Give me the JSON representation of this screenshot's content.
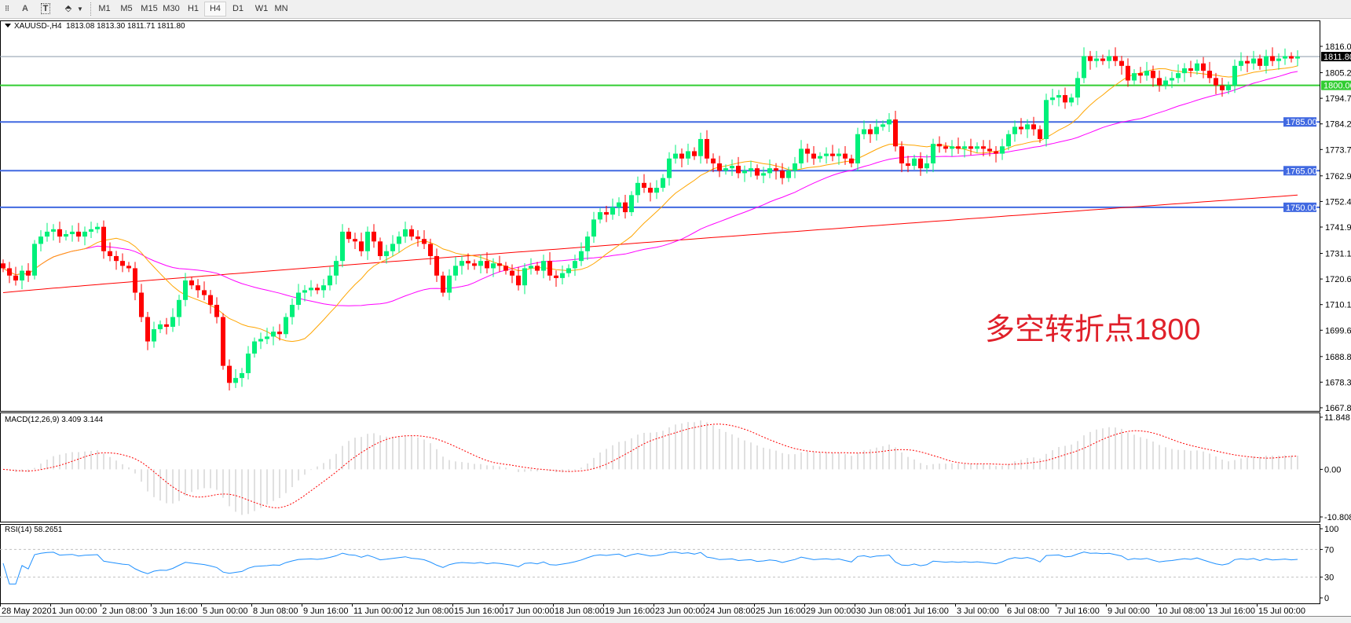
{
  "toolbar": {
    "icons": [
      "grid-icon",
      "text-icon",
      "text-label-icon",
      "arrows-icon"
    ],
    "text_icon_label": "A",
    "timeframes": [
      "M1",
      "M5",
      "M15",
      "M30",
      "H1",
      "H4",
      "D1",
      "W1",
      "MN"
    ],
    "active_timeframe": "H4"
  },
  "header": {
    "symbol": "XAUUSD-,H4",
    "ohlc": "1813.08 1813.30 1811.71 1811.80"
  },
  "annotation": "多空转折点1800",
  "colors": {
    "bull": "#00f07a",
    "bear": "#ff0000",
    "ma_fast": "#ffa500",
    "ma_mid": "#ff00ff",
    "ma_slow": "#ff0000",
    "level_green": "#32cd32",
    "level_blue": "#4169e1",
    "rsi": "#1e90ff",
    "macd_hist": "#c0c0c0",
    "macd_signal": "#ff0000"
  },
  "chart_data": [
    {
      "type": "candlestick",
      "symbol": "XAUUSD-",
      "timeframe": "H4",
      "ylim": [
        1667.8,
        1816.0
      ],
      "price_ticks": [
        "1816.00",
        "1805.20",
        "1794.70",
        "1784.20",
        "1773.70",
        "1762.90",
        "1752.40",
        "1741.90",
        "1731.10",
        "1720.60",
        "1710.10",
        "1699.60",
        "1688.80",
        "1678.30",
        "1667.80"
      ],
      "current_price": "1811.80",
      "levels": [
        {
          "price": 1800.0,
          "label": "1800.00",
          "color": "#32cd32"
        },
        {
          "price": 1785.0,
          "label": "1785.00",
          "color": "#4169e1"
        },
        {
          "price": 1765.0,
          "label": "1765.00",
          "color": "#4169e1"
        },
        {
          "price": 1750.0,
          "label": "1750.00",
          "color": "#4169e1"
        }
      ],
      "closes": [
        1725,
        1722,
        1720,
        1724,
        1722,
        1735,
        1738,
        1740,
        1741,
        1738,
        1739,
        1740,
        1738,
        1740,
        1741,
        1742,
        1732,
        1730,
        1728,
        1726,
        1725,
        1715,
        1705,
        1695,
        1700,
        1702,
        1701,
        1705,
        1712,
        1720,
        1718,
        1716,
        1714,
        1710,
        1705,
        1685,
        1678,
        1680,
        1682,
        1690,
        1695,
        1696,
        1697,
        1699,
        1698,
        1705,
        1710,
        1715,
        1716,
        1717,
        1716,
        1718,
        1722,
        1728,
        1740,
        1737,
        1736,
        1732,
        1740,
        1736,
        1730,
        1732,
        1735,
        1738,
        1741,
        1738,
        1737,
        1735,
        1730,
        1722,
        1715,
        1722,
        1726,
        1728,
        1727,
        1726,
        1728,
        1725,
        1727,
        1726,
        1724,
        1722,
        1718,
        1725,
        1726,
        1724,
        1728,
        1722,
        1721,
        1723,
        1725,
        1728,
        1732,
        1738,
        1745,
        1748,
        1747,
        1750,
        1752,
        1748,
        1755,
        1760,
        1758,
        1756,
        1758,
        1762,
        1770,
        1772,
        1770,
        1773,
        1771,
        1778,
        1770,
        1768,
        1765,
        1766,
        1767,
        1764,
        1765,
        1766,
        1763,
        1764,
        1766,
        1765,
        1762,
        1765,
        1768,
        1774,
        1772,
        1770,
        1771,
        1772,
        1771,
        1772,
        1770,
        1768,
        1780,
        1782,
        1780,
        1783,
        1784,
        1786,
        1775,
        1768,
        1767,
        1770,
        1766,
        1768,
        1776,
        1775,
        1774,
        1775,
        1774,
        1775,
        1774,
        1775,
        1774,
        1773,
        1772,
        1775,
        1780,
        1783,
        1782,
        1784,
        1782,
        1778,
        1794,
        1795,
        1796,
        1793,
        1795,
        1803,
        1812,
        1810,
        1811,
        1810,
        1812,
        1810,
        1808,
        1802,
        1805,
        1804,
        1806,
        1803,
        1800,
        1802,
        1803,
        1805,
        1807,
        1806,
        1809,
        1806,
        1803,
        1800,
        1798,
        1800,
        1808,
        1810,
        1809,
        1811,
        1808,
        1812,
        1810,
        1811,
        1812,
        1811,
        1811.8
      ],
      "ma_slow_range": [
        1715,
        1755
      ]
    },
    {
      "type": "bar",
      "title": "MACD(12,26,9) 3.409 3.144",
      "ylim": [
        -10.808,
        11.848
      ],
      "ticks": [
        "11.848",
        "0.00",
        "-10.808"
      ]
    },
    {
      "type": "line",
      "title": "RSI(14) 58.2651",
      "ylim": [
        0,
        100
      ],
      "ticks": [
        "100",
        "70",
        "30",
        "0"
      ],
      "levels": [
        70,
        30
      ]
    }
  ],
  "time_axis": [
    "28 May 2020",
    "1 Jun 00:00",
    "2 Jun 08:00",
    "3 Jun 16:00",
    "5 Jun 00:00",
    "8 Jun 08:00",
    "9 Jun 16:00",
    "11 Jun 00:00",
    "12 Jun 08:00",
    "15 Jun 16:00",
    "17 Jun 00:00",
    "18 Jun 08:00",
    "19 Jun 16:00",
    "23 Jun 00:00",
    "24 Jun 08:00",
    "25 Jun 16:00",
    "29 Jun 00:00",
    "30 Jun 08:00",
    "1 Jul 16:00",
    "3 Jul 00:00",
    "6 Jul 08:00",
    "7 Jul 16:00",
    "9 Jul 00:00",
    "10 Jul 08:00",
    "13 Jul 16:00",
    "15 Jul 00:00"
  ]
}
